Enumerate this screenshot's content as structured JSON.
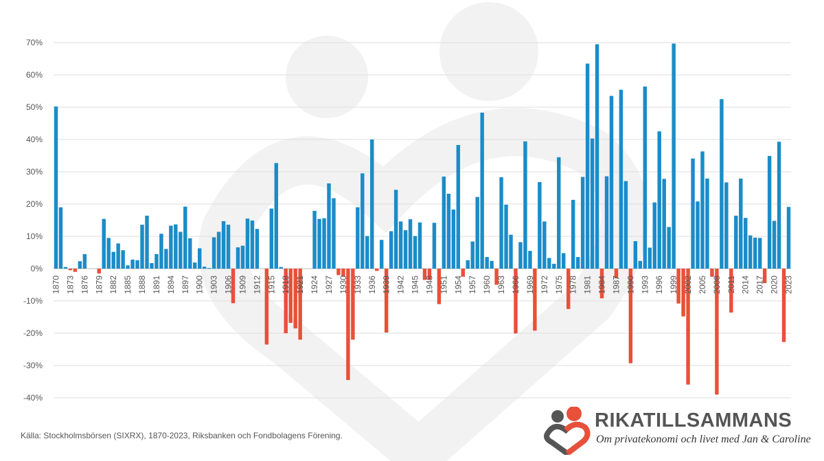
{
  "chart_data": {
    "type": "bar",
    "x_start": 1870,
    "x_end": 2023,
    "x_tick_labels": [
      "1870",
      "1873",
      "1876",
      "1879",
      "1882",
      "1885",
      "1888",
      "1891",
      "1894",
      "1897",
      "1900",
      "1903",
      "1906",
      "1909",
      "1912",
      "1915",
      "1918",
      "1921",
      "1924",
      "1927",
      "1930",
      "1933",
      "1936",
      "1939",
      "1942",
      "1945",
      "1948",
      "1951",
      "1954",
      "1957",
      "1960",
      "1963",
      "1966",
      "1969",
      "1972",
      "1975",
      "1978",
      "1981",
      "1984",
      "1987",
      "1990",
      "1993",
      "1996",
      "1999",
      "2002",
      "2005",
      "2008",
      "2011",
      "2014",
      "2017",
      "2020",
      "2023"
    ],
    "y_tick_labels": [
      "70%",
      "60%",
      "50%",
      "40%",
      "30%",
      "20%",
      "10%",
      "0%",
      "-10%",
      "-20%",
      "-30%",
      "-40%"
    ],
    "ylim": [
      -40,
      70
    ],
    "grid": true,
    "legend": "none",
    "positive_color": "#1b8cc8",
    "negative_color": "#e8503a",
    "values": [
      50.2,
      19,
      0.5,
      -0.5,
      -1,
      2.3,
      4.5,
      0,
      0,
      -1.5,
      15.4,
      9.5,
      5.2,
      7.8,
      5.7,
      1,
      2.8,
      2.6,
      13.6,
      16.4,
      1.7,
      4.5,
      10.8,
      6.1,
      13.3,
      13.7,
      11.4,
      19.2,
      9.4,
      1.9,
      6.3,
      0.6,
      0.2,
      9.7,
      11.4,
      14.7,
      13.6,
      -10.7,
      6.6,
      7.1,
      15.5,
      14.9,
      12.3,
      0,
      -23.5,
      18.6,
      32.7,
      0.5,
      -20,
      -16.8,
      -18.5,
      -22,
      0,
      0,
      17.9,
      15.4,
      15.6,
      26.4,
      21.8,
      -2,
      -2.3,
      -34.5,
      -22,
      19,
      29.5,
      10.1,
      40,
      -0.7,
      8.9,
      -19.8,
      11.6,
      24.4,
      14.6,
      11.9,
      15.3,
      10.1,
      14.3,
      -3.5,
      -3.5,
      14.2,
      -11,
      28.5,
      23.2,
      18.3,
      38.3,
      -2.5,
      2.6,
      8.4,
      22.2,
      48.3,
      3.6,
      2.4,
      -5,
      28.3,
      19.8,
      10.5,
      -20.1,
      8.2,
      39.4,
      5.5,
      -19.2,
      26.8,
      14.6,
      3.3,
      1.5,
      34.5,
      4.8,
      -12.5,
      21.3,
      3.6,
      28.4,
      63.5,
      40.3,
      69.5,
      -9.2,
      28.6,
      53.5,
      -3,
      55.4,
      27.1,
      -29.3,
      8.5,
      2.4,
      56.4,
      6.5,
      20.5,
      42.5,
      27.8,
      12.9,
      69.7,
      -10.8,
      -14.8,
      -35.9,
      34.1,
      20.8,
      36.3,
      27.9,
      -2.5,
      -39,
      52.5,
      26.7,
      -13.6,
      16.4,
      27.9,
      15.7,
      10.3,
      9.6,
      9.5,
      -4.5,
      34.9,
      14.8,
      39.3,
      -22.7,
      19.1
    ]
  },
  "footer": {
    "source": "Källa: Stockholmsbörsen (SIXRX), 1870-2023, Riksbanken och Fondbolagens Förening."
  },
  "brand": {
    "name": "RIKATILLSAMMANS",
    "tagline": "Om privatekonomi och livet med Jan & Caroline",
    "accent": "#e8503a",
    "gray": "#555555"
  }
}
